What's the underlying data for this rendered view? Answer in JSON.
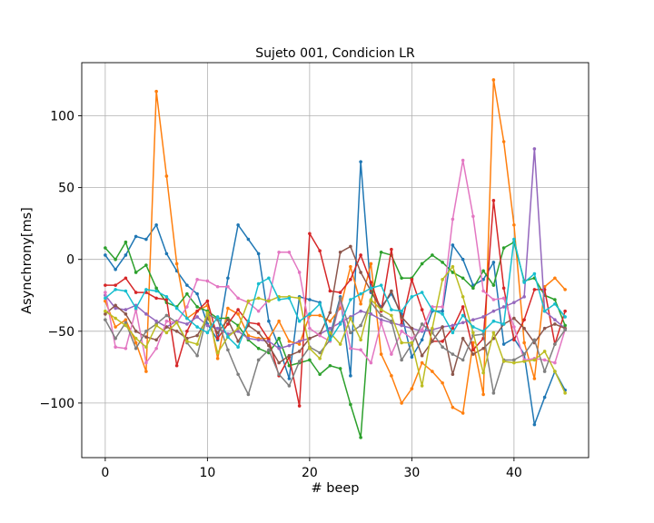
{
  "chart_data": {
    "type": "line",
    "title": "Sujeto 001, Condicion LR",
    "xlabel": "# beep",
    "ylabel": "Asynchrony[ms]",
    "xlim": [
      -2.3,
      47.3
    ],
    "ylim": [
      -138,
      137
    ],
    "xticks": [
      0,
      10,
      20,
      30,
      40
    ],
    "yticks": [
      -100,
      -50,
      0,
      50,
      100
    ],
    "grid": true,
    "x": [
      0,
      1,
      2,
      3,
      4,
      5,
      6,
      7,
      8,
      9,
      10,
      11,
      12,
      13,
      14,
      15,
      16,
      17,
      18,
      19,
      20,
      21,
      22,
      23,
      24,
      25,
      26,
      27,
      28,
      29,
      30,
      31,
      32,
      33,
      34,
      35,
      36,
      37,
      38,
      39,
      40,
      41,
      42,
      43,
      44,
      45
    ],
    "series": [
      {
        "color": "#1f77b4",
        "values": [
          3,
          -7,
          3,
          16,
          14,
          24,
          4,
          -8,
          -18,
          -24,
          -45,
          -56,
          -13,
          24,
          14,
          4,
          -43,
          -61,
          -83,
          -26,
          -28,
          -30,
          -53,
          -26,
          -81,
          68,
          -23,
          -33,
          -24,
          -38,
          -68,
          -56,
          -36,
          -36,
          10,
          0,
          -18,
          -14,
          -2,
          -59,
          -55,
          -66,
          -115,
          -96,
          -78,
          -91
        ]
      },
      {
        "color": "#ff7f0e",
        "values": [
          -29,
          -47,
          -42,
          -58,
          -78,
          117,
          58,
          -3,
          -41,
          -36,
          -32,
          -69,
          -34,
          -38,
          -53,
          -55,
          -55,
          -43,
          -57,
          -59,
          -39,
          -39,
          -43,
          -34,
          -5,
          -31,
          -3,
          -66,
          -81,
          -100,
          -90,
          -72,
          -78,
          -86,
          -103,
          -107,
          -58,
          -94,
          125,
          82,
          24,
          -58,
          -83,
          -19,
          -13,
          -21
        ]
      },
      {
        "color": "#2ca02c",
        "values": [
          8,
          0,
          12,
          -9,
          -4,
          -20,
          -30,
          -33,
          -24,
          -33,
          -36,
          -41,
          -41,
          -46,
          -56,
          -62,
          -65,
          -55,
          -74,
          -72,
          -70,
          -80,
          -74,
          -76,
          -101,
          -124,
          -29,
          5,
          3,
          -13,
          -13,
          -3,
          3,
          -2,
          -9,
          -13,
          -20,
          -8,
          -18,
          8,
          12,
          -15,
          -13,
          -25,
          -28,
          -46
        ]
      },
      {
        "color": "#d62728",
        "values": [
          -18,
          -18,
          -13,
          -23,
          -23,
          -27,
          -28,
          -74,
          -50,
          -36,
          -29,
          -55,
          -45,
          -35,
          -44,
          -45,
          -56,
          -81,
          -68,
          -102,
          18,
          6,
          -22,
          -23,
          -14,
          3,
          -16,
          -36,
          7,
          -45,
          -14,
          -35,
          -57,
          -57,
          -48,
          -33,
          -63,
          -55,
          41,
          -20,
          -56,
          -42,
          -21,
          -21,
          -59,
          -36
        ]
      },
      {
        "color": "#9467bd",
        "values": [
          -25,
          -34,
          -35,
          -32,
          -38,
          -43,
          -47,
          -43,
          -45,
          -40,
          -46,
          -48,
          -52,
          -50,
          -55,
          -56,
          -57,
          -62,
          -60,
          -57,
          -55,
          -52,
          -48,
          -44,
          -40,
          -36,
          -38,
          -42,
          -44,
          -46,
          -48,
          -50,
          -49,
          -47,
          -46,
          -44,
          -42,
          -40,
          -36,
          -33,
          -30,
          -26,
          77,
          -36,
          -42,
          -48
        ]
      },
      {
        "color": "#8c564b",
        "values": [
          -38,
          -32,
          -38,
          -50,
          -54,
          -56,
          -47,
          -50,
          -55,
          -53,
          -41,
          -51,
          -42,
          -57,
          -46,
          -51,
          -60,
          -72,
          -67,
          -64,
          -55,
          -52,
          -37,
          5,
          9,
          -9,
          -22,
          -35,
          -22,
          -40,
          -48,
          -67,
          -57,
          -47,
          -80,
          -55,
          -66,
          -62,
          -55,
          -45,
          -41,
          -48,
          -58,
          -48,
          -45,
          -48
        ]
      },
      {
        "color": "#e377c2",
        "values": [
          -23,
          -61,
          -62,
          -35,
          -72,
          -62,
          -43,
          -44,
          -33,
          -14,
          -15,
          -19,
          -19,
          -27,
          -30,
          -36,
          -28,
          5,
          5,
          -9,
          -48,
          -53,
          -57,
          -29,
          -62,
          -63,
          -72,
          -44,
          -66,
          -50,
          -55,
          -49,
          -33,
          -33,
          28,
          69,
          30,
          -22,
          -28,
          -27,
          -47,
          -70,
          -69,
          -70,
          -72,
          -49
        ]
      },
      {
        "color": "#7f7f7f",
        "values": [
          -42,
          -55,
          -44,
          -62,
          -50,
          -45,
          -39,
          -44,
          -58,
          -67,
          -38,
          -42,
          -63,
          -80,
          -94,
          -70,
          -63,
          -80,
          -88,
          -71,
          -61,
          -65,
          -56,
          -27,
          -51,
          -46,
          -30,
          -39,
          -43,
          -70,
          -59,
          -45,
          -51,
          -61,
          -66,
          -70,
          -53,
          -52,
          -93,
          -70,
          -70,
          -66,
          -56,
          -78,
          -59,
          -49
        ]
      },
      {
        "color": "#bcbd22",
        "values": [
          -36,
          -41,
          -46,
          -55,
          -61,
          -46,
          -51,
          -44,
          -57,
          -59,
          -37,
          -65,
          -54,
          -48,
          -29,
          -27,
          -29,
          -26,
          -26,
          -27,
          -62,
          -69,
          -51,
          -59,
          -41,
          -56,
          -28,
          -35,
          -39,
          -58,
          -58,
          -88,
          -48,
          -14,
          -5,
          -26,
          -51,
          -79,
          -51,
          -71,
          -72,
          -71,
          -70,
          -64,
          -78,
          -93
        ]
      },
      {
        "color": "#17becf",
        "values": [
          -27,
          -21,
          -22,
          -34,
          -21,
          -22,
          -26,
          -34,
          -41,
          -47,
          -51,
          -40,
          -54,
          -61,
          -43,
          -17,
          -13,
          -28,
          -27,
          -43,
          -38,
          -31,
          -56,
          -45,
          -28,
          -24,
          -20,
          -18,
          -35,
          -36,
          -26,
          -23,
          -35,
          -38,
          -51,
          -39,
          -47,
          -50,
          -43,
          -45,
          14,
          -16,
          -10,
          -36,
          -31,
          -40
        ]
      }
    ]
  }
}
